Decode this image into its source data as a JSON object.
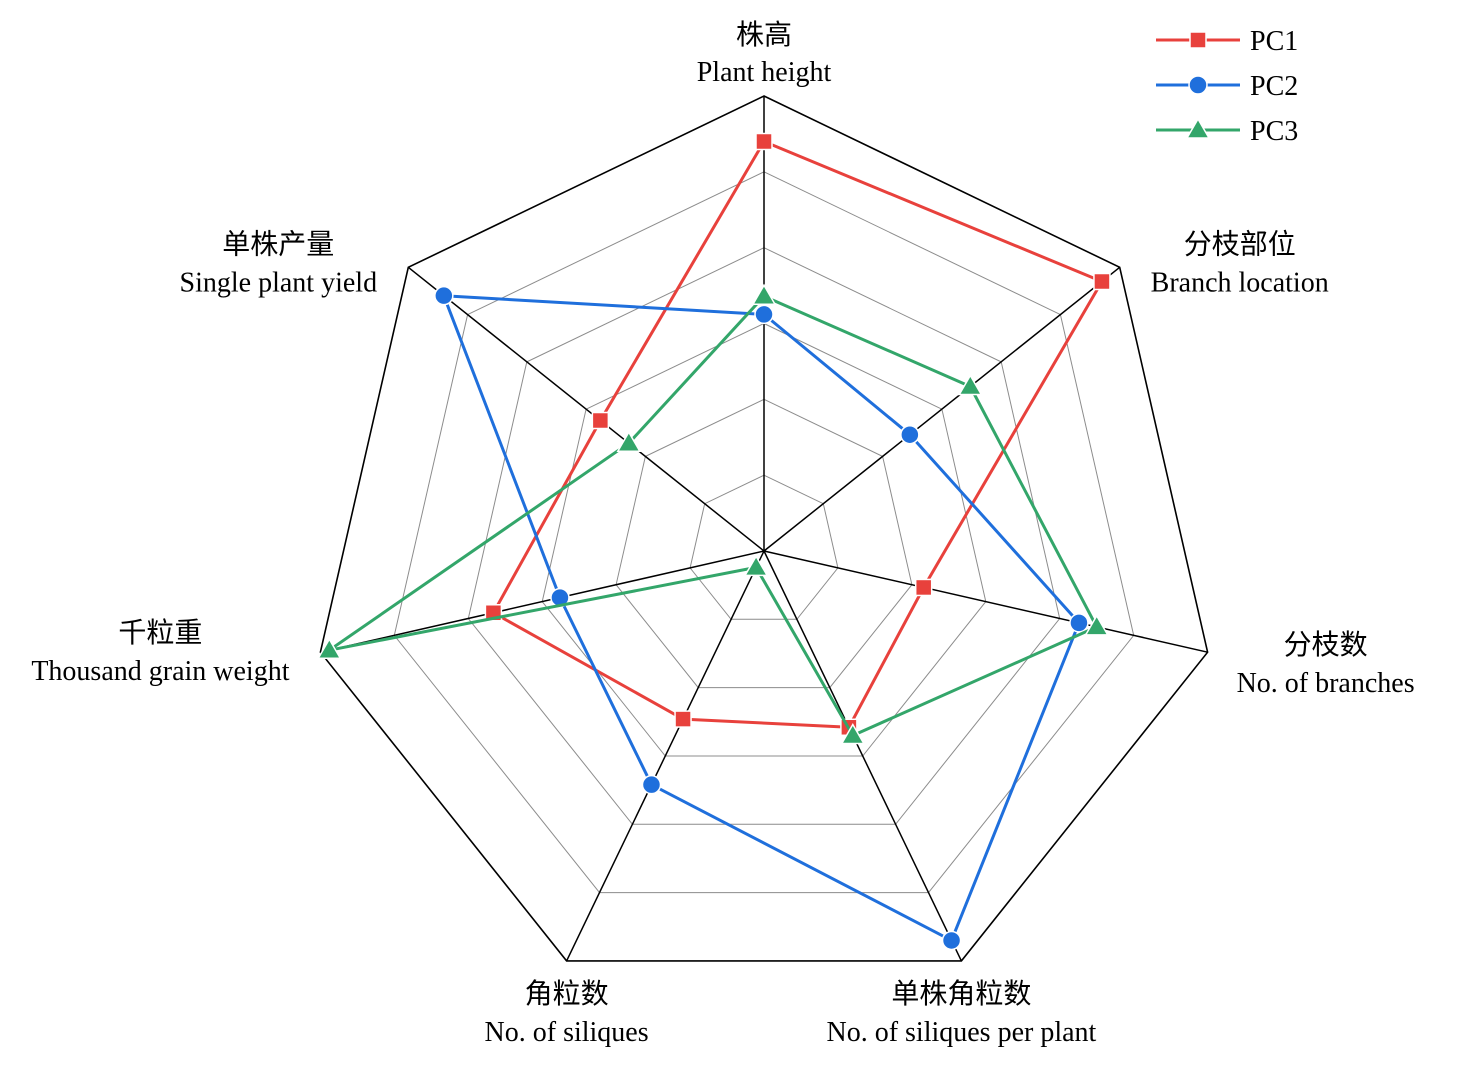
{
  "chart_data": {
    "type": "radar",
    "axes": [
      {
        "zh": "株高",
        "en": "Plant height"
      },
      {
        "zh": "分枝部位",
        "en": "Branch location"
      },
      {
        "zh": "分枝数",
        "en": "No. of branches"
      },
      {
        "zh": "单株角粒数",
        "en": "No. of siliques per plant"
      },
      {
        "zh": "角粒数",
        "en": "No. of siliques"
      },
      {
        "zh": "千粒重",
        "en": "Thousand grain weight"
      },
      {
        "zh": "单株产量",
        "en": "Single plant yield"
      }
    ],
    "rings": 6,
    "range": [
      0,
      1
    ],
    "grid": true,
    "legend_position": "top-right",
    "series": [
      {
        "name": "PC1",
        "color": "#e8413c",
        "marker": "square",
        "values": [
          0.9,
          0.95,
          0.36,
          0.43,
          0.41,
          0.61,
          0.46
        ]
      },
      {
        "name": "PC2",
        "color": "#1f6fdc",
        "marker": "circle",
        "values": [
          0.52,
          0.41,
          0.71,
          0.95,
          0.57,
          0.46,
          0.9
        ]
      },
      {
        "name": "PC3",
        "color": "#33a66a",
        "marker": "triangle",
        "values": [
          0.56,
          0.58,
          0.75,
          0.45,
          0.04,
          0.98,
          0.38
        ]
      }
    ]
  }
}
